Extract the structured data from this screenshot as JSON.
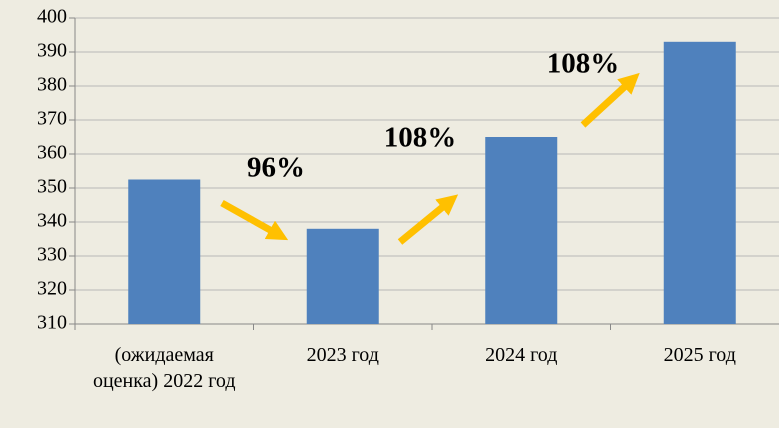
{
  "chart_data": {
    "type": "bar",
    "categories": [
      "(ожидаемая оценка) 2022 год",
      "2023 год",
      "2024 год",
      "2025 год"
    ],
    "values": [
      352.5,
      338,
      365,
      393
    ],
    "color": "#4f81bd",
    "ylim": [
      310,
      400
    ],
    "yticks": [
      310,
      320,
      330,
      340,
      350,
      360,
      370,
      380,
      390,
      400
    ],
    "grid": true,
    "annotations": [
      "96%",
      "108%",
      "108%"
    ]
  }
}
